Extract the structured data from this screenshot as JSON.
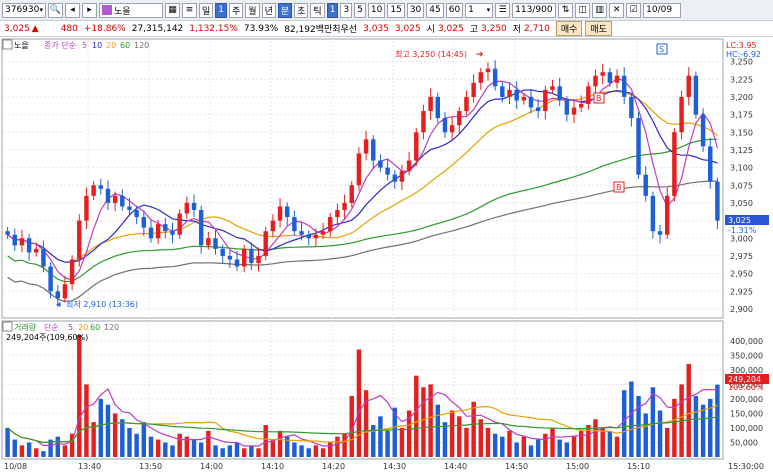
{
  "toolbar": {
    "code": "376930",
    "name": "노을",
    "periods": [
      "일",
      "주",
      "월",
      "년",
      "분",
      "초",
      "틱"
    ],
    "selected_period": "분",
    "selected_period_day": "1",
    "intervals": [
      "1",
      "3",
      "5",
      "10",
      "15",
      "30",
      "45",
      "60"
    ],
    "selected_interval": "1",
    "count_value": "1",
    "page": "113/900",
    "date": "10/09"
  },
  "info": {
    "price": "3,025",
    "change": "480",
    "change_pct": "+18.86%",
    "volume": "27,315,142",
    "volume_ratio": "1,132.15%",
    "turnover": "73.93%",
    "amount": "82,192백만",
    "ask_label": "최우선",
    "ask": "3,035",
    "bid": "3,025",
    "open_label": "시",
    "open": "3,025",
    "high_label": "고",
    "high": "3,250",
    "low_label": "저",
    "low": "2,710",
    "buy_label": "매수",
    "sell_label": "매도"
  },
  "price_legend": {
    "name": "노을",
    "ma_label": "종가 단순",
    "periods": [
      "5",
      "10",
      "20",
      "60",
      "120"
    ]
  },
  "volume_legend": {
    "label": "거래량",
    "ma_label": "단순",
    "periods": [
      "5",
      "20",
      "60",
      "120"
    ],
    "current": "249,204주(109,60%)"
  },
  "annotations": {
    "lc": "LC:3.95",
    "hc": "HC:-6.92",
    "high": "최고 3,250 (14:45)",
    "low": "최저 2,910 (13:36)",
    "current_price": "3,025",
    "current_pct": "-1.31%",
    "current_volume": "249,204",
    "current_volume_pct": "109.60%",
    "marker_s": "S",
    "marker_b": "B"
  },
  "colors": {
    "up": "#e41f1f",
    "down": "#1f5fd6",
    "ma5": "#c03cc0",
    "ma10": "#2a2acc",
    "ma20": "#e8a000",
    "ma60": "#2e9a2e",
    "ma120": "#707070"
  },
  "chart_data": [
    {
      "type": "candlestick",
      "y_ticks": [
        "3,250",
        "3,225",
        "3,200",
        "3,175",
        "3,150",
        "3,125",
        "3,100",
        "3,075",
        "3,050",
        "3,025",
        "3,000",
        "2,975",
        "2,950",
        "2,925",
        "2,900"
      ],
      "ylim": [
        2890,
        3265
      ],
      "x_ticks": [
        "10/08",
        "13:40",
        "13:50",
        "14:00",
        "14:10",
        "14:20",
        "14:30",
        "14:40",
        "14:50",
        "15:00",
        "15:10",
        "15:30:00"
      ],
      "close": [
        3005,
        2990,
        3000,
        2980,
        2985,
        2960,
        2925,
        2915,
        2935,
        2970,
        3025,
        3060,
        3075,
        3070,
        3050,
        3060,
        3045,
        3040,
        3030,
        3015,
        3000,
        3020,
        3010,
        3005,
        3035,
        3050,
        3040,
        2990,
        3000,
        2985,
        2975,
        2970,
        2960,
        2985,
        2965,
        2975,
        3010,
        3025,
        3045,
        3030,
        3010,
        3005,
        3000,
        3005,
        3010,
        3030,
        3040,
        3050,
        3075,
        3120,
        3140,
        3110,
        3100,
        3090,
        3080,
        3095,
        3110,
        3150,
        3180,
        3200,
        3170,
        3150,
        3160,
        3180,
        3200,
        3220,
        3235,
        3240,
        3215,
        3200,
        3210,
        3195,
        3200,
        3185,
        3180,
        3210,
        3215,
        3195,
        3175,
        3185,
        3190,
        3215,
        3230,
        3235,
        3220,
        3230,
        3200,
        3170,
        3090,
        3060,
        3010,
        3005,
        3060,
        3150,
        3200,
        3230,
        3175,
        3130,
        3080,
        3025
      ],
      "open": [
        3010,
        3005,
        2990,
        3000,
        2980,
        2985,
        2960,
        2925,
        2915,
        2935,
        2970,
        3025,
        3060,
        3075,
        3070,
        3050,
        3060,
        3045,
        3040,
        3030,
        3015,
        3000,
        3020,
        3010,
        3005,
        3035,
        3050,
        3040,
        2990,
        3000,
        2985,
        2975,
        2970,
        2960,
        2985,
        2965,
        2975,
        3010,
        3025,
        3045,
        3030,
        3010,
        3005,
        3000,
        3005,
        3010,
        3030,
        3040,
        3050,
        3075,
        3120,
        3140,
        3110,
        3100,
        3090,
        3080,
        3095,
        3110,
        3150,
        3180,
        3200,
        3170,
        3150,
        3160,
        3180,
        3200,
        3220,
        3235,
        3240,
        3215,
        3200,
        3210,
        3195,
        3200,
        3185,
        3180,
        3210,
        3215,
        3195,
        3175,
        3185,
        3190,
        3215,
        3230,
        3235,
        3220,
        3230,
        3200,
        3170,
        3090,
        3060,
        3010,
        3005,
        3060,
        3150,
        3200,
        3230,
        3175,
        3130,
        3080
      ]
    },
    {
      "type": "bar",
      "y_ticks": [
        "400,000",
        "350,000",
        "300,000",
        "250,000",
        "200,000",
        "150,000",
        "100,000",
        "50,000"
      ],
      "ylim": [
        0,
        420000
      ],
      "values": [
        100000,
        60000,
        40000,
        50000,
        30000,
        20000,
        60000,
        70000,
        40000,
        80000,
        420000,
        250000,
        120000,
        200000,
        180000,
        150000,
        130000,
        100000,
        80000,
        120000,
        70000,
        60000,
        50000,
        40000,
        80000,
        70000,
        60000,
        50000,
        90000,
        40000,
        30000,
        40000,
        50000,
        30000,
        40000,
        30000,
        110000,
        60000,
        90000,
        70000,
        50000,
        40000,
        30000,
        40000,
        30000,
        50000,
        70000,
        80000,
        210000,
        370000,
        230000,
        110000,
        140000,
        90000,
        170000,
        100000,
        160000,
        280000,
        240000,
        250000,
        180000,
        120000,
        160000,
        140000,
        100000,
        190000,
        130000,
        100000,
        80000,
        70000,
        90000,
        50000,
        70000,
        40000,
        60000,
        80000,
        100000,
        60000,
        50000,
        70000,
        90000,
        110000,
        130000,
        100000,
        90000,
        70000,
        230000,
        260000,
        210000,
        150000,
        240000,
        160000,
        100000,
        200000,
        250000,
        320000,
        210000,
        180000,
        200000,
        249204
      ]
    }
  ]
}
